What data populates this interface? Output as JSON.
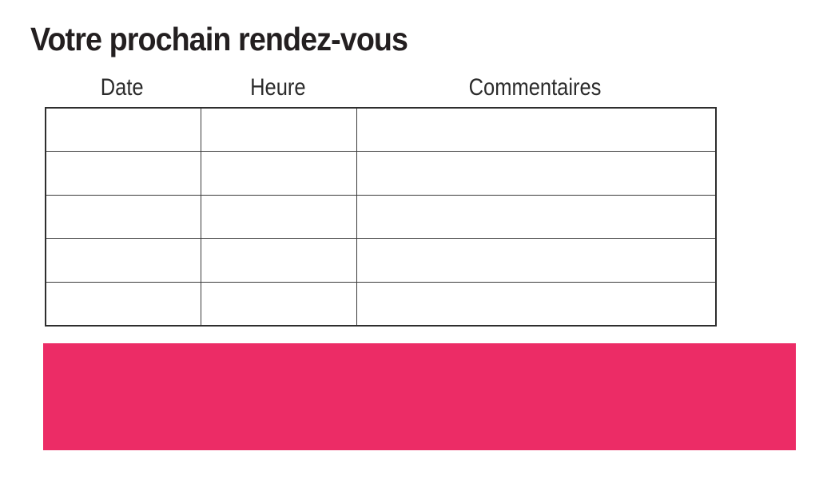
{
  "page": {
    "background_color": "#ffffff",
    "text_color": "#231f20"
  },
  "title": "Votre prochain rendez-vous",
  "table": {
    "headers": [
      "Date",
      "Heure",
      "Commentaires"
    ],
    "rows": [
      [
        "",
        "",
        ""
      ],
      [
        "",
        "",
        ""
      ],
      [
        "",
        "",
        ""
      ],
      [
        "",
        "",
        ""
      ],
      [
        "",
        "",
        ""
      ]
    ],
    "border_color": "#3b3b3b"
  },
  "banner": {
    "color": "#EC2C66"
  }
}
